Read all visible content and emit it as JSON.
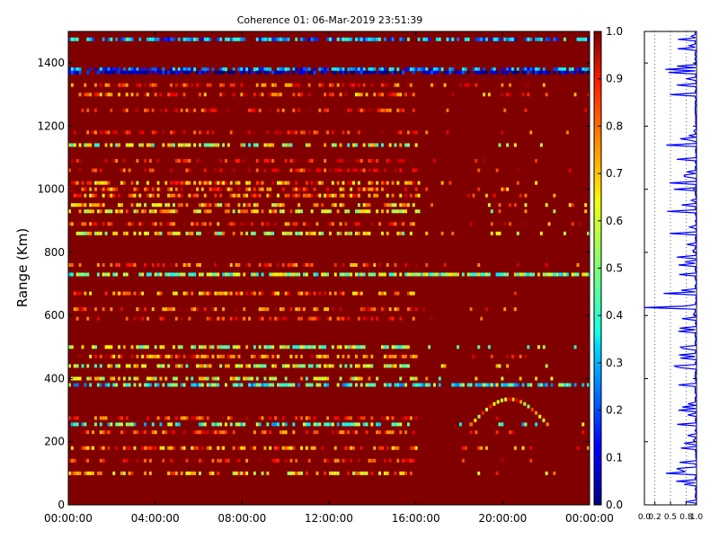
{
  "chart_data": [
    {
      "type": "heatmap",
      "title": "Coherence 01: 06-Mar-2019 23:51:39",
      "xlabel": "",
      "ylabel": "Range (Km)",
      "x_tick_labels": [
        "00:00:00",
        "04:00:00",
        "08:00:00",
        "12:00:00",
        "16:00:00",
        "20:00:00",
        "00:00:00"
      ],
      "xlim_hours": [
        0,
        24
      ],
      "y_ticks": [
        0,
        200,
        400,
        600,
        800,
        1000,
        1200,
        1400
      ],
      "ylim": [
        0,
        1500
      ],
      "background_value": 1.0,
      "bands": [
        {
          "range_km": 1475,
          "value": 0.3
        },
        {
          "range_km": 1380,
          "value": 0.25
        },
        {
          "range_km": 1370,
          "value": 0.05
        },
        {
          "range_km": 1330,
          "value": 0.85
        },
        {
          "range_km": 1300,
          "value": 0.8
        },
        {
          "range_km": 1250,
          "value": 0.9
        },
        {
          "range_km": 1180,
          "value": 0.9
        },
        {
          "range_km": 1140,
          "value": 0.55
        },
        {
          "range_km": 1090,
          "value": 0.9
        },
        {
          "range_km": 1060,
          "value": 0.9
        },
        {
          "range_km": 1020,
          "value": 0.75
        },
        {
          "range_km": 1000,
          "value": 0.8
        },
        {
          "range_km": 980,
          "value": 0.75
        },
        {
          "range_km": 950,
          "value": 0.7
        },
        {
          "range_km": 930,
          "value": 0.65
        },
        {
          "range_km": 890,
          "value": 0.85
        },
        {
          "range_km": 860,
          "value": 0.6
        },
        {
          "range_km": 760,
          "value": 0.85
        },
        {
          "range_km": 730,
          "value": 0.5
        },
        {
          "range_km": 670,
          "value": 0.75
        },
        {
          "range_km": 620,
          "value": 0.85
        },
        {
          "range_km": 590,
          "value": 0.9
        },
        {
          "range_km": 500,
          "value": 0.55
        },
        {
          "range_km": 470,
          "value": 0.8
        },
        {
          "range_km": 440,
          "value": 0.6
        },
        {
          "range_km": 400,
          "value": 0.6
        },
        {
          "range_km": 380,
          "value": 0.4
        },
        {
          "range_km": 275,
          "value": 0.85
        },
        {
          "range_km": 255,
          "value": 0.45
        },
        {
          "range_km": 230,
          "value": 0.85
        },
        {
          "range_km": 180,
          "value": 0.75
        },
        {
          "range_km": 140,
          "value": 0.9
        },
        {
          "range_km": 100,
          "value": 0.7
        }
      ],
      "arc_event": {
        "start_hour": 18.5,
        "end_hour": 22.0,
        "base_km": 255,
        "peak_km": 335,
        "value": 0.7
      }
    },
    {
      "type": "colorbar",
      "colormap": "jet",
      "range": [
        0.0,
        1.0
      ],
      "tick_labels": [
        "0.0",
        "0.1",
        "0.2",
        "0.3",
        "0.4",
        "0.5",
        "0.6",
        "0.7",
        "0.8",
        "0.9",
        "1.0"
      ]
    },
    {
      "type": "line",
      "description_axis": "horizontal value vs range",
      "x_tick_labels": [
        "0.0",
        "0.2",
        "0.5",
        "0.8",
        "1.0"
      ],
      "x_ticks": [
        0.0,
        0.2,
        0.5,
        0.8,
        1.0
      ],
      "xlim": [
        0,
        1
      ],
      "ylim": [
        0,
        1500
      ],
      "line_color": "#0000ff",
      "dip_ranges_km": [
        1475,
        1380,
        1370,
        1330,
        1300,
        1140,
        1020,
        1000,
        950,
        930,
        860,
        760,
        730,
        670,
        590,
        500,
        440,
        380,
        255,
        180,
        100
      ],
      "deep_dip": {
        "range_km": 625,
        "value": 0.0
      }
    }
  ]
}
